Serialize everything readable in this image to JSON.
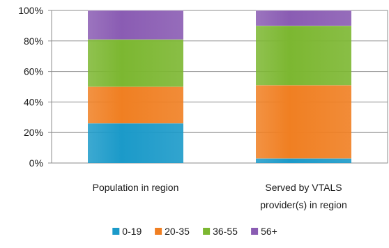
{
  "chart_data": {
    "type": "bar",
    "stacked": true,
    "percent": true,
    "categories": [
      "Population in region",
      "Served by VTALS provider(s) in region"
    ],
    "category_lines": [
      [
        "Population in region"
      ],
      [
        "Served by VTALS",
        "provider(s) in region"
      ]
    ],
    "series": [
      {
        "name": "0-19",
        "color": "#1b9ac9",
        "values": [
          26,
          3
        ]
      },
      {
        "name": "20-35",
        "color": "#f07f22",
        "values": [
          24,
          48
        ]
      },
      {
        "name": "36-55",
        "color": "#7cb731",
        "values": [
          31,
          39
        ]
      },
      {
        "name": "56+",
        "color": "#8a5cb3",
        "values": [
          19,
          10
        ]
      }
    ],
    "ylim": [
      0,
      100
    ],
    "yticks": [
      "0%",
      "20%",
      "40%",
      "60%",
      "80%",
      "100%"
    ],
    "grid": true,
    "legend": "bottom"
  }
}
